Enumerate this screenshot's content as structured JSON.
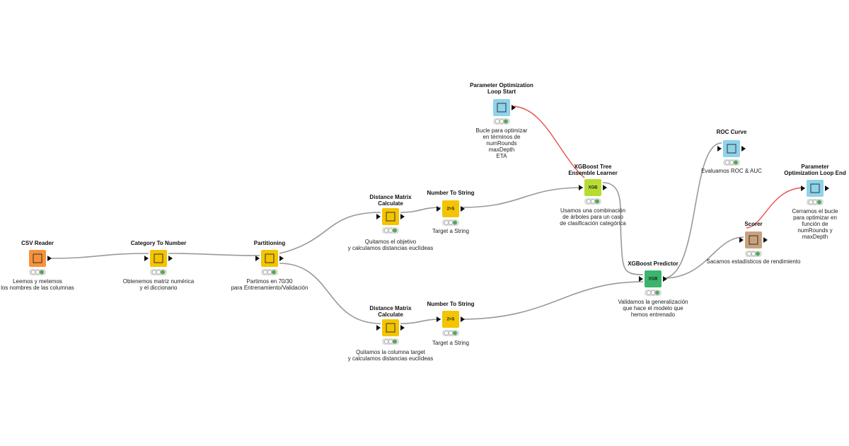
{
  "nodes": [
    {
      "title": [
        "CSV Reader"
      ],
      "note": [
        "Leemos y metemos",
        "los nombres de las columnas"
      ]
    },
    {
      "title": [
        "Category To Number"
      ],
      "note": [
        "Obtenemos matriz numérica",
        "y el diccionario"
      ]
    },
    {
      "title": [
        "Partitioning"
      ],
      "note": [
        "Partimos en 70/30",
        "para Entrenamiento/Validación"
      ]
    },
    {
      "title": [
        "Distance Matrix",
        "Calculate"
      ],
      "note": [
        "Quitamos el objetivo",
        "y calculamos distancias euclídeas"
      ]
    },
    {
      "title": [
        "Number To String"
      ],
      "note": [
        "Target a String"
      ],
      "icon_text": "2>S"
    },
    {
      "title": [
        "Distance Matrix",
        "Calculate"
      ],
      "note": [
        "Quitamos la columna target",
        "y calculamos distancias euclídeas"
      ]
    },
    {
      "title": [
        "Number To String"
      ],
      "note": [
        "Target a String"
      ],
      "icon_text": "2>S"
    },
    {
      "title": [
        "Parameter Optimization",
        "Loop Start"
      ],
      "note": [
        "Bucle para optimizar",
        "en términos de",
        "numRounds",
        "maxDepth",
        "ETA"
      ]
    },
    {
      "title": [
        "XGBoost Tree",
        "Ensemble Learner"
      ],
      "note": [
        "Usamos una combinación",
        "de árboles para un caso",
        "de clasificación categórica"
      ],
      "icon_text": "XGB"
    },
    {
      "title": [
        "XGBoost Predictor"
      ],
      "note": [
        "Validamos la generalización",
        "que hace el modelo que",
        "hemos entrenado"
      ],
      "icon_text": "XGB"
    },
    {
      "title": [
        "ROC Curve"
      ],
      "note": [
        "Evaluamos ROC & AUC"
      ]
    },
    {
      "title": [
        "Scorer"
      ],
      "note": [
        "Sacamos estadísticos de rendimiento"
      ]
    },
    {
      "title": [
        "Parameter",
        "Optimization Loop End"
      ],
      "note": [
        "Cerramos el bucle",
        "para optimizar en",
        "función de",
        "numRounds y",
        "maxDepth"
      ]
    }
  ]
}
